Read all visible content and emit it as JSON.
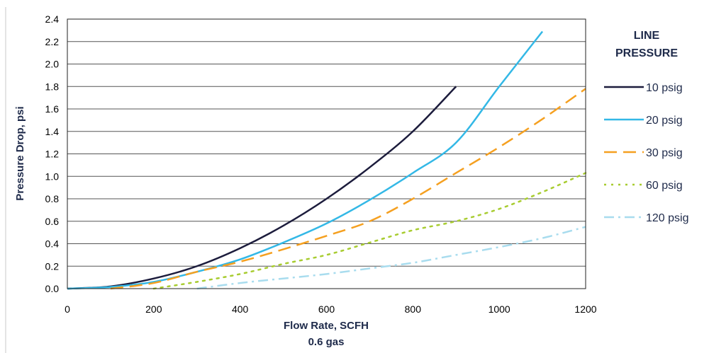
{
  "chart_data": {
    "type": "line",
    "title": "",
    "xlabel": "Flow Rate, SCFH",
    "xlabel2": "0.6 gas",
    "ylabel": "Pressure Drop, psi",
    "xlim": [
      0,
      1200
    ],
    "ylim": [
      0,
      2.4
    ],
    "xticks": [
      "0",
      "200",
      "400",
      "600",
      "800",
      "1000",
      "1200"
    ],
    "yticks": [
      "0.0",
      "0.2",
      "0.4",
      "0.6",
      "0.8",
      "1.0",
      "1.2",
      "1.4",
      "1.6",
      "1.8",
      "2.0",
      "2.2",
      "2.4"
    ],
    "grid": true,
    "legend_title_line1": "LINE",
    "legend_title_line2": "PRESSURE",
    "legend_position": "right",
    "series": [
      {
        "name": "10 psig",
        "color": "#1c1c3c",
        "dash": "solid",
        "x": [
          0,
          100,
          200,
          300,
          400,
          500,
          600,
          700,
          800,
          900
        ],
        "y": [
          0,
          0.02,
          0.09,
          0.2,
          0.36,
          0.56,
          0.8,
          1.08,
          1.4,
          1.8
        ]
      },
      {
        "name": "20 psig",
        "color": "#33b8e6",
        "dash": "solid",
        "x": [
          0,
          100,
          200,
          300,
          400,
          500,
          600,
          700,
          800,
          900,
          1000,
          1100
        ],
        "y": [
          0,
          0.015,
          0.06,
          0.15,
          0.26,
          0.41,
          0.58,
          0.79,
          1.03,
          1.3,
          1.8,
          2.29
        ]
      },
      {
        "name": "30 psig",
        "color": "#f5a020",
        "dash": "long-dash",
        "x": [
          100,
          200,
          300,
          400,
          500,
          600,
          700,
          800,
          900,
          1000,
          1100,
          1200
        ],
        "y": [
          0,
          0.05,
          0.15,
          0.24,
          0.35,
          0.47,
          0.6,
          0.8,
          1.03,
          1.26,
          1.51,
          1.78
        ]
      },
      {
        "name": "60 psig",
        "color": "#a8cc30",
        "dash": "dotted",
        "x": [
          200,
          300,
          400,
          500,
          600,
          700,
          800,
          900,
          1000,
          1100,
          1200
        ],
        "y": [
          0,
          0.06,
          0.13,
          0.22,
          0.3,
          0.41,
          0.52,
          0.6,
          0.71,
          0.86,
          1.03
        ]
      },
      {
        "name": "120 psig",
        "color": "#a8dcee",
        "dash": "dash-dot",
        "x": [
          300,
          400,
          500,
          600,
          700,
          800,
          900,
          1000,
          1100,
          1200
        ],
        "y": [
          0,
          0.05,
          0.09,
          0.13,
          0.18,
          0.23,
          0.3,
          0.37,
          0.45,
          0.55
        ]
      }
    ]
  }
}
